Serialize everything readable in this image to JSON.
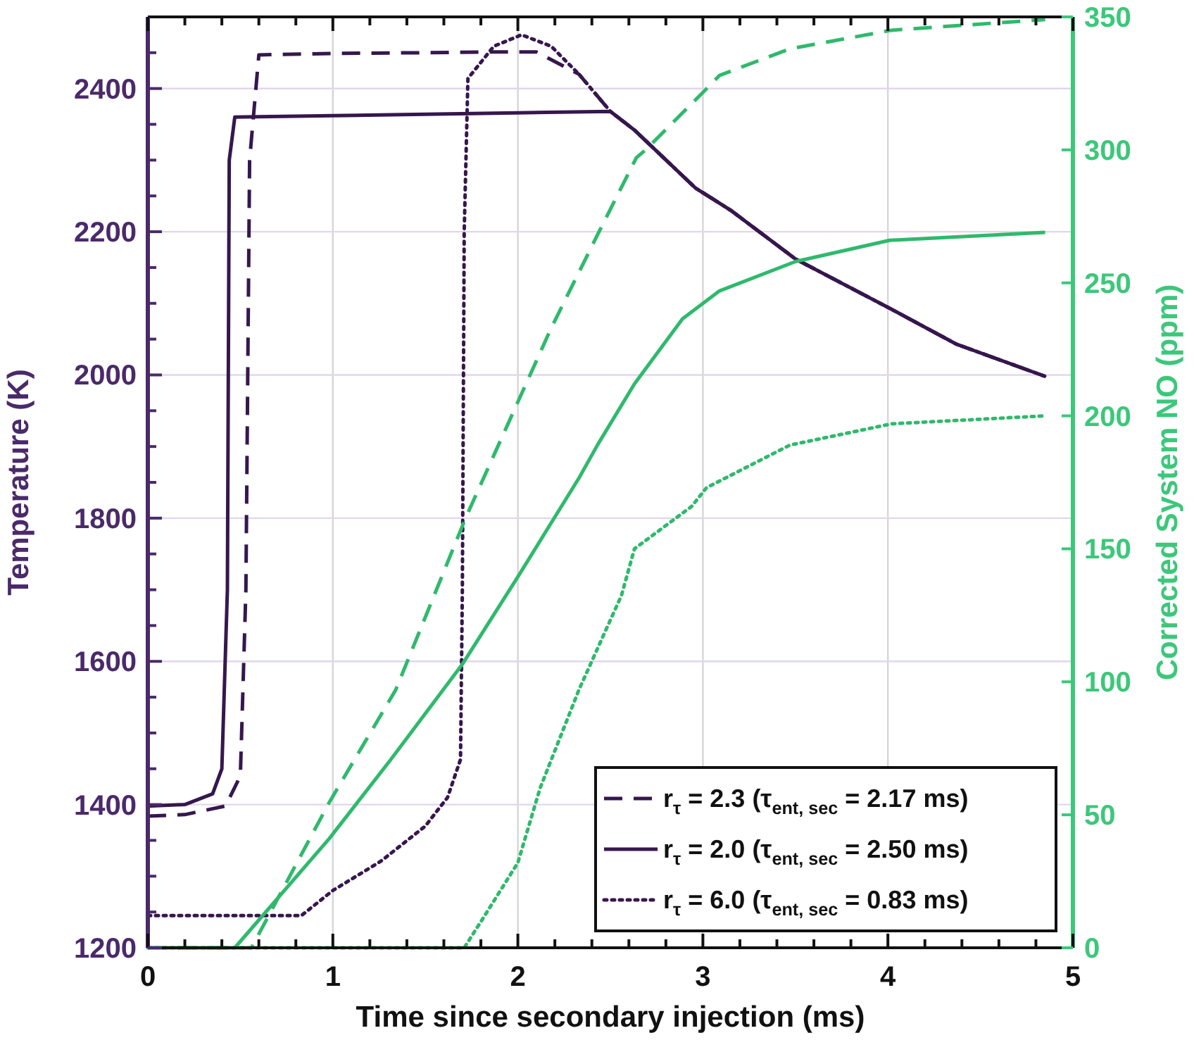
{
  "chart_data": {
    "type": "line",
    "xlabel": "Time since secondary injection (ms)",
    "ylabel": "Temperature (K)",
    "y2label": "Corrected System NO (ppm)",
    "xlim": [
      0,
      5
    ],
    "ylim": [
      1200,
      2500
    ],
    "y2lim": [
      0,
      350
    ],
    "xticks": [
      0,
      {
        "value": 0.2,
        "label": null
      },
      {
        "value": 0.4,
        "label": null
      },
      {
        "value": 0.6,
        "label": null
      },
      {
        "value": 0.8,
        "label": null
      },
      1,
      {
        "value": 1.2,
        "label": null
      },
      {
        "value": 1.4,
        "label": null
      },
      {
        "value": 1.6,
        "label": null
      },
      {
        "value": 1.8,
        "label": null
      },
      2,
      {
        "value": 2.2,
        "label": null
      },
      {
        "value": 2.4,
        "label": null
      },
      {
        "value": 2.6,
        "label": null
      },
      {
        "value": 2.8,
        "label": null
      },
      3,
      {
        "value": 3.2,
        "label": null
      },
      {
        "value": 3.4,
        "label": null
      },
      {
        "value": 3.6,
        "label": null
      },
      {
        "value": 3.8,
        "label": null
      },
      4,
      {
        "value": 4.2,
        "label": null
      },
      {
        "value": 4.4,
        "label": null
      },
      {
        "value": 4.6,
        "label": null
      },
      {
        "value": 4.8,
        "label": null
      },
      5
    ],
    "yticks": [
      1200,
      {
        "value": 1250,
        "label": null
      },
      {
        "value": 1300,
        "label": null
      },
      {
        "value": 1350,
        "label": null
      },
      1400,
      {
        "value": 1450,
        "label": null
      },
      {
        "value": 1500,
        "label": null
      },
      {
        "value": 1550,
        "label": null
      },
      1600,
      {
        "value": 1650,
        "label": null
      },
      {
        "value": 1700,
        "label": null
      },
      {
        "value": 1750,
        "label": null
      },
      1800,
      {
        "value": 1850,
        "label": null
      },
      {
        "value": 1900,
        "label": null
      },
      {
        "value": 1950,
        "label": null
      },
      2000,
      {
        "value": 2050,
        "label": null
      },
      {
        "value": 2100,
        "label": null
      },
      {
        "value": 2150,
        "label": null
      },
      2200,
      {
        "value": 2250,
        "label": null
      },
      {
        "value": 2300,
        "label": null
      },
      {
        "value": 2350,
        "label": null
      },
      2400,
      {
        "value": 2450,
        "label": null
      }
    ],
    "y2ticks": [
      0,
      50,
      100,
      150,
      200,
      250,
      300,
      350
    ],
    "grid": true,
    "legend": "bottom right",
    "series": [
      {
        "name": "r$_{τ}$ = 2.3 (τ$_{ent, sec}$ = 2.17 ms)",
        "color": "#36174d",
        "line_style": "dashed",
        "x": [
          0,
          0.2,
          0.42,
          0.5,
          0.53,
          0.55,
          0.6,
          1.0,
          1.5,
          1.82,
          2.1,
          2.33,
          2.5,
          2.63,
          2.96,
          3.15,
          3.5,
          4.01,
          4.37,
          4.85
        ],
        "values": [
          1384,
          1386,
          1398,
          1440,
          1700,
          2300,
          2447,
          2449,
          2450,
          2451,
          2451,
          2420,
          2368,
          2342,
          2261,
          2230,
          2162,
          2093,
          2043,
          1998
        ]
      },
      {
        "name": "r$_{τ}$ = 2.0 (τ$_{ent, sec}$ = 2.50 ms)",
        "color": "#36174d",
        "line_style": "solid",
        "x": [
          0,
          0.2,
          0.35,
          0.4,
          0.43,
          0.44,
          0.47,
          1.0,
          1.5,
          2.0,
          2.5,
          2.63,
          2.96,
          3.15,
          3.5,
          4.01,
          4.37,
          4.85
        ],
        "values": [
          1398,
          1400,
          1415,
          1450,
          1700,
          2300,
          2360,
          2362,
          2364,
          2366,
          2368,
          2342,
          2261,
          2230,
          2162,
          2093,
          2043,
          1998
        ]
      },
      {
        "name": "r$_{τ}$ = 6.0 (τ$_{ent, sec}$ = 0.83 ms)",
        "color": "#36174d",
        "line_style": "dotted",
        "x": [
          0,
          0.5,
          0.83,
          1.0,
          1.26,
          1.5,
          1.62,
          1.69,
          1.7,
          1.71,
          1.73,
          1.87,
          2.02,
          2.18,
          2.33,
          2.5,
          2.63,
          2.96,
          3.15,
          3.5,
          4.01,
          4.37,
          4.85
        ],
        "values": [
          1245,
          1245,
          1245,
          1280,
          1321,
          1370,
          1410,
          1463,
          1700,
          2200,
          2414,
          2459,
          2475,
          2459,
          2420,
          2368,
          2342,
          2261,
          2230,
          2162,
          2093,
          2043,
          1998
        ]
      },
      {
        "color": "#2fb96c",
        "line_style": "dashed",
        "axis": "y2",
        "x": [
          0,
          0.56,
          0.98,
          1.34,
          1.72,
          2.18,
          2.43,
          2.64,
          2.69,
          3.02,
          3.09,
          3.47,
          4.02,
          4.85
        ],
        "values": [
          0,
          0,
          54.6,
          97,
          162,
          233,
          268,
          297,
          300,
          323,
          328,
          338,
          345,
          349
        ]
      },
      {
        "color": "#2fb96c",
        "line_style": "solid",
        "axis": "y2",
        "x": [
          0,
          0.47,
          0.98,
          1.31,
          1.7,
          2.0,
          2.33,
          2.43,
          2.63,
          2.89,
          3.09,
          3.5,
          4.01,
          4.85
        ],
        "values": [
          0,
          0,
          41,
          70.5,
          106.6,
          139.5,
          176.6,
          189,
          212,
          236.5,
          247,
          258,
          266,
          269
        ]
      },
      {
        "color": "#2fb96c",
        "line_style": "dotted",
        "axis": "y2",
        "x": [
          0,
          1.71,
          1.82,
          2.0,
          2.12,
          2.33,
          2.56,
          2.63,
          2.94,
          3.02,
          3.47,
          4.02,
          4.85
        ],
        "values": [
          0,
          0,
          12,
          32,
          60,
          97,
          132.5,
          150,
          166,
          173,
          189,
          197,
          200
        ]
      }
    ]
  }
}
